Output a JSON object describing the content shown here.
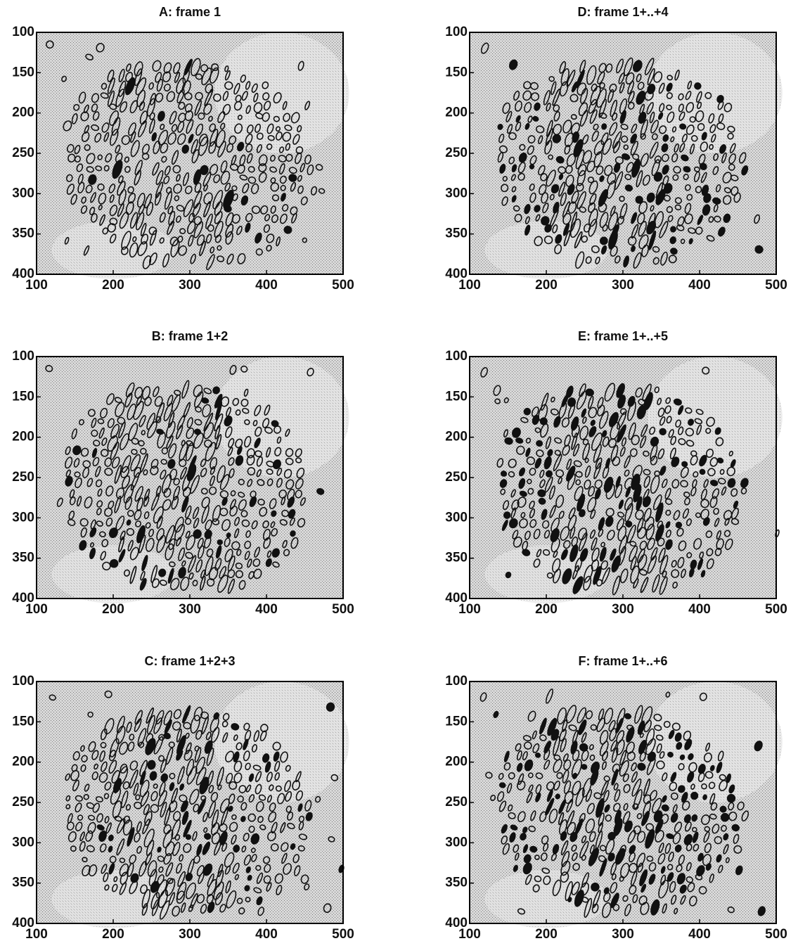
{
  "chart_data": [
    {
      "type": "image",
      "title": "A: frame 1",
      "xlim": [
        100,
        500
      ],
      "ylim": [
        100,
        400
      ],
      "y_reversed": true,
      "xticks": [
        100,
        200,
        300,
        400,
        500
      ],
      "yticks": [
        100,
        150,
        200,
        250,
        300,
        350,
        400
      ]
    },
    {
      "type": "image",
      "title": "B: frame 1+2",
      "xlim": [
        100,
        500
      ],
      "ylim": [
        100,
        400
      ],
      "y_reversed": true,
      "xticks": [
        100,
        200,
        300,
        400,
        500
      ],
      "yticks": [
        100,
        150,
        200,
        250,
        300,
        350,
        400
      ]
    },
    {
      "type": "image",
      "title": "C: frame 1+2+3",
      "xlim": [
        100,
        500
      ],
      "ylim": [
        100,
        400
      ],
      "y_reversed": true,
      "xticks": [
        100,
        200,
        300,
        400,
        500
      ],
      "yticks": [
        100,
        150,
        200,
        250,
        300,
        350,
        400
      ]
    },
    {
      "type": "image",
      "title": "D: frame 1+..+4",
      "xlim": [
        100,
        500
      ],
      "ylim": [
        100,
        400
      ],
      "y_reversed": true,
      "xticks": [
        100,
        200,
        300,
        400,
        500
      ],
      "yticks": [
        100,
        150,
        200,
        250,
        300,
        350,
        400
      ]
    },
    {
      "type": "image",
      "title": "E: frame 1+..+5",
      "xlim": [
        100,
        500
      ],
      "ylim": [
        100,
        400
      ],
      "y_reversed": true,
      "xticks": [
        100,
        200,
        300,
        400,
        500
      ],
      "yticks": [
        100,
        150,
        200,
        250,
        300,
        350,
        400
      ]
    },
    {
      "type": "image",
      "title": "F: frame 1+..+6",
      "xlim": [
        100,
        500
      ],
      "ylim": [
        100,
        400
      ],
      "y_reversed": true,
      "xticks": [
        100,
        200,
        300,
        400,
        500
      ],
      "yticks": [
        100,
        150,
        200,
        250,
        300,
        350,
        400
      ]
    }
  ]
}
